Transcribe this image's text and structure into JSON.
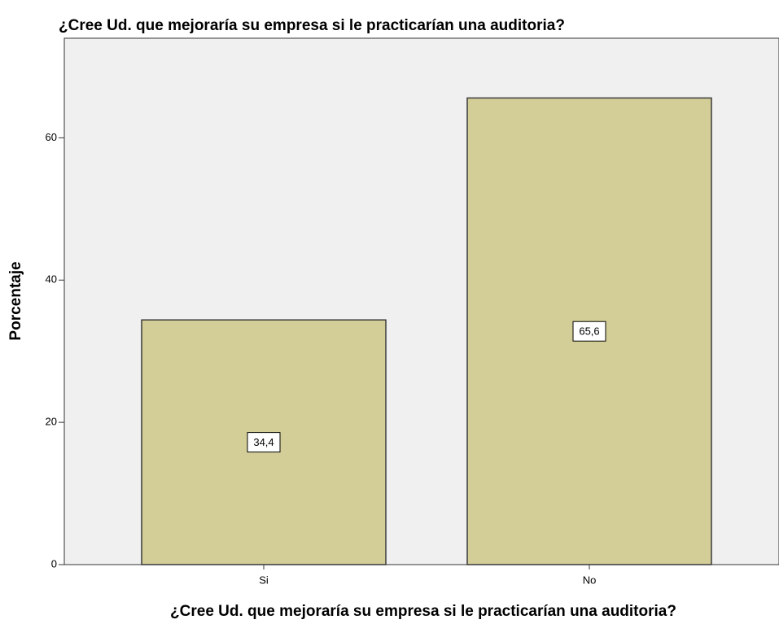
{
  "chart_data": {
    "type": "bar",
    "title": "¿Cree Ud. que mejoraría su empresa si le practicarían una auditoria?",
    "x_label": "¿Cree Ud. que mejoraría su empresa si le practicarían una auditoria?",
    "y_label": "Porcentaje",
    "categories": [
      "Si",
      "No"
    ],
    "values": [
      34.4,
      65.6
    ],
    "value_labels": [
      "34,4",
      "65,6"
    ],
    "color": "#d3ce97",
    "ylim": [
      0,
      74
    ],
    "yticks": [
      0,
      20,
      40,
      60
    ],
    "grid": false
  }
}
